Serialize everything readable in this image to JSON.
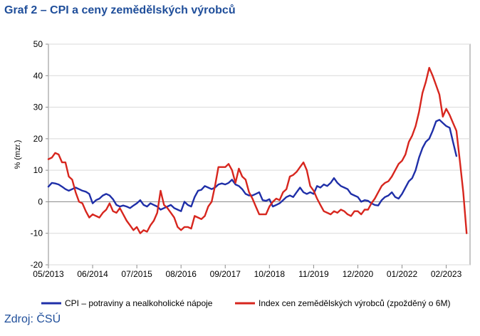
{
  "title": "Graf 2 – CPI a ceny zemědělských výrobců",
  "source": "Zdroj: ČSÚ",
  "chart_data": {
    "type": "line",
    "title": "Graf 2 – CPI a ceny zemědělských výrobců",
    "xlabel": "",
    "ylabel": "% (mzr.)",
    "ylim": [
      -20,
      50
    ],
    "yticks": [
      -20,
      -10,
      0,
      10,
      20,
      30,
      40,
      50
    ],
    "xlim": [
      0,
      124
    ],
    "x_ticks": [
      {
        "label": "05/2013",
        "x": 0
      },
      {
        "label": "06/2014",
        "x": 13
      },
      {
        "label": "07/2015",
        "x": 26
      },
      {
        "label": "08/2016",
        "x": 39
      },
      {
        "label": "09/2017",
        "x": 52
      },
      {
        "label": "10/2018",
        "x": 65
      },
      {
        "label": "11/2019",
        "x": 78
      },
      {
        "label": "12/2020",
        "x": 91
      },
      {
        "label": "01/2022",
        "x": 104
      },
      {
        "label": "02/2023",
        "x": 117
      }
    ],
    "grid": true,
    "legend_position": "bottom",
    "series": [
      {
        "name": "CPI – potraviny a nealkoholické nápoje",
        "color": "#1f2fa8",
        "x_start": 0,
        "values": [
          4.8,
          6.0,
          5.8,
          5.5,
          4.8,
          4.0,
          3.5,
          4.0,
          4.5,
          4.0,
          3.5,
          3.2,
          2.5,
          -0.5,
          0.5,
          1.0,
          2.0,
          2.5,
          2.0,
          0.8,
          -1.0,
          -1.5,
          -1.2,
          -1.5,
          -2.0,
          -1.2,
          -0.5,
          0.5,
          -1.0,
          -1.5,
          -0.5,
          -1.0,
          -1.5,
          -2.5,
          -2.0,
          -1.5,
          -1.0,
          -2.0,
          -2.5,
          -3.0,
          0.0,
          -1.0,
          -1.5,
          1.5,
          3.5,
          3.8,
          5.0,
          4.5,
          4.0,
          4.5,
          5.5,
          5.8,
          5.5,
          6.0,
          7.0,
          5.5,
          5.0,
          4.0,
          2.5,
          2.0,
          2.0,
          2.5,
          3.0,
          0.5,
          0.3,
          0.8,
          -1.5,
          -1.0,
          -0.5,
          0.5,
          1.5,
          2.0,
          1.5,
          3.0,
          4.5,
          3.0,
          2.5,
          3.0,
          2.5,
          5.0,
          4.5,
          5.5,
          5.0,
          6.0,
          7.5,
          6.0,
          5.0,
          4.5,
          4.0,
          2.5,
          2.0,
          1.5,
          0.0,
          0.5,
          0.3,
          -0.5,
          -1.0,
          -1.2,
          0.5,
          1.5,
          2.0,
          3.0,
          1.5,
          1.0,
          2.5,
          4.5,
          6.5,
          7.5,
          10.0,
          14.0,
          17.0,
          19.0,
          20.0,
          22.5,
          25.5,
          26.0,
          25.0,
          24.0,
          23.5,
          19.0,
          14.5
        ]
      },
      {
        "name": "Index cen zemědělských výrobců (zpožděný o 6M)",
        "color": "#d7261e",
        "x_start": 0,
        "values": [
          13.5,
          14.0,
          15.5,
          15.0,
          12.5,
          12.5,
          8.0,
          7.0,
          3.0,
          0.0,
          -0.5,
          -3.0,
          -5.0,
          -4.0,
          -4.5,
          -5.0,
          -3.5,
          -2.5,
          -0.5,
          -3.0,
          -3.5,
          -2.0,
          -4.0,
          -6.0,
          -7.5,
          -9.0,
          -8.0,
          -10.0,
          -9.0,
          -9.5,
          -7.5,
          -6.0,
          -3.5,
          3.5,
          -1.0,
          -2.0,
          -3.5,
          -5.0,
          -8.0,
          -9.0,
          -8.0,
          -8.0,
          -8.5,
          -4.5,
          -5.0,
          -5.5,
          -4.5,
          -1.5,
          0.0,
          5.0,
          11.0,
          11.0,
          11.0,
          12.0,
          10.0,
          6.0,
          10.5,
          8.0,
          7.0,
          3.0,
          1.0,
          -1.5,
          -4.0,
          -4.0,
          -4.0,
          -1.5,
          0.0,
          1.0,
          0.5,
          3.0,
          4.0,
          8.0,
          8.5,
          9.5,
          11.0,
          12.5,
          10.0,
          5.0,
          3.5,
          1.0,
          -1.0,
          -3.0,
          -3.5,
          -4.0,
          -3.0,
          -3.5,
          -2.5,
          -3.0,
          -4.0,
          -4.5,
          -3.0,
          -3.0,
          -4.0,
          -2.5,
          -2.5,
          -0.5,
          1.0,
          3.0,
          5.0,
          6.0,
          6.5,
          8.0,
          10.0,
          12.0,
          13.0,
          15.0,
          19.0,
          21.0,
          24.0,
          28.5,
          34.5,
          38.0,
          42.5,
          40.0,
          37.0,
          34.0,
          27.0,
          29.5,
          27.5,
          25.0,
          22.5,
          13.0,
          3.0,
          -10.0
        ]
      }
    ]
  }
}
